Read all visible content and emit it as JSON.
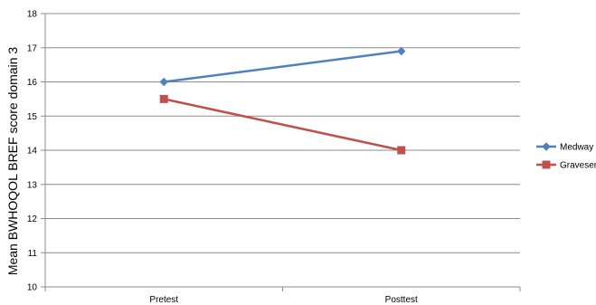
{
  "chart_data": {
    "type": "line",
    "title": "",
    "xlabel": "",
    "ylabel": "Mean BWHOQOL BREF score domain 3",
    "categories": [
      "Pretest",
      "Posttest"
    ],
    "ylim": [
      10,
      18
    ],
    "yticks": [
      10,
      11,
      12,
      13,
      14,
      15,
      16,
      17,
      18
    ],
    "grid": true,
    "legend": "right",
    "series": [
      {
        "name": "Medway",
        "values": [
          16.0,
          16.9
        ],
        "color": "#4f81bd",
        "marker": "diamond"
      },
      {
        "name": "Gravesend",
        "values": [
          15.5,
          14.0
        ],
        "color": "#c0504d",
        "marker": "square"
      }
    ]
  }
}
